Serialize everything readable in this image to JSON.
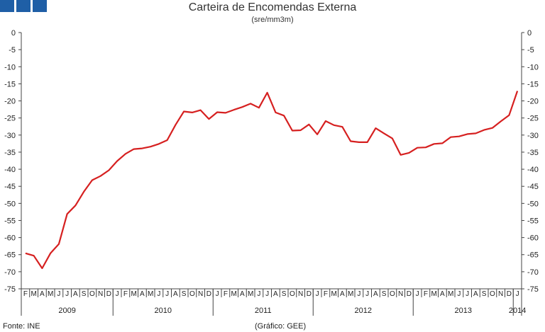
{
  "header": {
    "title": "Carteira de Encomendas Externa",
    "subtitle": "(sre/mm3m)"
  },
  "footer": {
    "source": "Fonte: INE",
    "credit": "(Gráfico: GEE)"
  },
  "colors": {
    "logo": "#1f5fa6",
    "line": "#d62020",
    "axis": "#444444"
  },
  "chart_data": {
    "type": "line",
    "title": "Carteira de Encomendas Externa",
    "subtitle": "(sre/mm3m)",
    "ylim": [
      -75,
      0
    ],
    "yticks": [
      0,
      -5,
      -10,
      -15,
      -20,
      -25,
      -30,
      -35,
      -40,
      -45,
      -50,
      -55,
      -60,
      -65,
      -70,
      -75
    ],
    "month_labels": [
      "F",
      "M",
      "A",
      "M",
      "J",
      "J",
      "A",
      "S",
      "O",
      "N",
      "D",
      "J",
      "F",
      "M",
      "A",
      "M",
      "J",
      "J",
      "A",
      "S",
      "O",
      "N",
      "D",
      "J",
      "F",
      "M",
      "A",
      "M",
      "J",
      "J",
      "A",
      "S",
      "O",
      "N",
      "D",
      "J",
      "F",
      "M",
      "A",
      "M",
      "J",
      "J",
      "A",
      "S",
      "O",
      "N",
      "D",
      "J",
      "F",
      "M",
      "A",
      "M",
      "J",
      "J",
      "A",
      "S",
      "O",
      "N",
      "D",
      "J"
    ],
    "years": [
      {
        "label": "2009",
        "start": 0,
        "end": 10
      },
      {
        "label": "2010",
        "start": 11,
        "end": 22
      },
      {
        "label": "2011",
        "start": 23,
        "end": 34
      },
      {
        "label": "2012",
        "start": 35,
        "end": 46
      },
      {
        "label": "2013",
        "start": 47,
        "end": 58
      },
      {
        "label": "2014",
        "start": 59,
        "end": 59
      }
    ],
    "series": [
      {
        "values": [
          -64.6,
          -65.3,
          -69.0,
          -64.6,
          -61.9,
          -53.1,
          -50.6,
          -46.6,
          -43.2,
          -42.0,
          -40.3,
          -37.6,
          -35.5,
          -34.1,
          -33.9,
          -33.4,
          -32.6,
          -31.5,
          -27.0,
          -23.1,
          -23.4,
          -22.7,
          -25.3,
          -23.3,
          -23.5,
          -22.6,
          -21.8,
          -20.8,
          -22.0,
          -17.6,
          -23.4,
          -24.3,
          -28.7,
          -28.6,
          -26.9,
          -29.8,
          -25.9,
          -27.1,
          -27.6,
          -31.8,
          -32.1,
          -32.1,
          -28.0,
          -29.5,
          -31.0,
          -35.8,
          -35.2,
          -33.7,
          -33.6,
          -32.6,
          -32.4,
          -30.6,
          -30.4,
          -29.7,
          -29.5,
          -28.5,
          -27.9,
          -26.0,
          -24.2,
          -17.1
        ]
      }
    ],
    "grid": false,
    "legend": "none"
  }
}
